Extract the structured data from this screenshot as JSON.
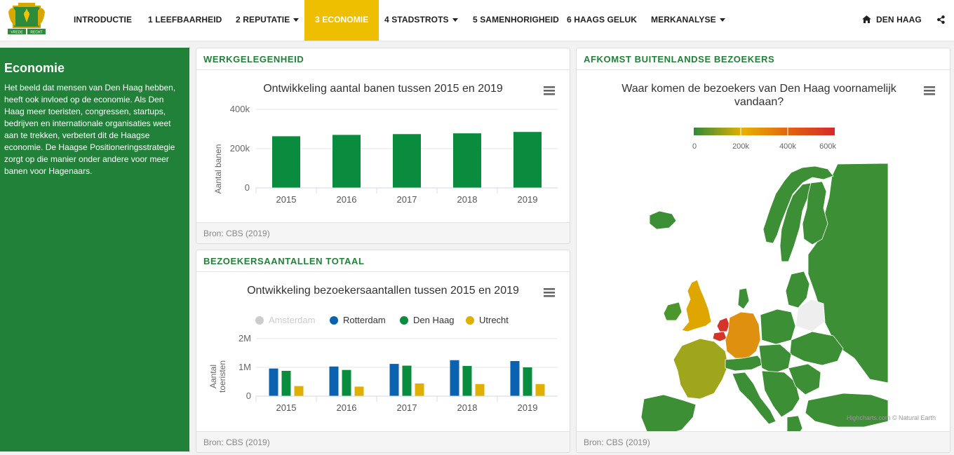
{
  "nav": {
    "items": [
      {
        "label": "INTRODUCTIE"
      },
      {
        "label": "1 LEEFBAARHEID"
      },
      {
        "label": "2 REPUTATIE"
      },
      {
        "label": "3 ECONOMIE"
      },
      {
        "label": "4 STADSTROTS"
      },
      {
        "label": "5 SAMENHORIGHEID"
      },
      {
        "label": "6 HAAGS GELUK"
      },
      {
        "label": "MERKANALYSE"
      }
    ],
    "active": "3 ECONOMIE",
    "city": "DEN HAAG",
    "logo_text": {
      "left": "VREDE",
      "right": "RECHT"
    },
    "colors": {
      "active": "#eebf00",
      "brand": "#218139"
    }
  },
  "sidebar": {
    "title": "Economie",
    "text": "Het beeld dat mensen van Den Haag hebben, heeft ook invloed op de economie. Als Den Haag meer toeristen, congressen, startups, bedrijven en internationale organisaties weet aan te trekken, verbetert dit de Haagse economie. De Haagse Positioneringsstrategie zorgt op die manier onder andere voor meer banen voor Hagenaars."
  },
  "panels": {
    "jobs": {
      "header": "WERKGELEGENHEID",
      "footer": "Bron: CBS (2019)"
    },
    "visitors": {
      "header": "BEZOEKERSAANTALLEN TOTAAL",
      "footer": "Bron: CBS (2019)"
    },
    "map": {
      "header": "AFKOMST BUITENLANDSE BEZOEKERS",
      "footer": "Bron: CBS (2019)"
    }
  },
  "chart_data": [
    {
      "type": "bar",
      "title": "Ontwikkeling aantal banen tussen 2015 en 2019",
      "ylabel": "Aantal banen",
      "xlabel": "",
      "categories": [
        "2015",
        "2016",
        "2017",
        "2018",
        "2019"
      ],
      "values": [
        263000,
        270000,
        274000,
        278000,
        285000
      ],
      "ylim": [
        0,
        400000
      ],
      "yticks": [
        {
          "value": 0,
          "label": "0"
        },
        {
          "value": 200000,
          "label": "200k"
        },
        {
          "value": 400000,
          "label": "400k"
        }
      ],
      "color": "#0a8c3e",
      "grid": true,
      "legend": "none"
    },
    {
      "type": "bar",
      "title": "Ontwikkeling bezoekersaantallen tussen 2015 en 2019",
      "ylabel": "Aantal toeristen",
      "xlabel": "",
      "categories": [
        "2015",
        "2016",
        "2017",
        "2018",
        "2019"
      ],
      "series": [
        {
          "name": "Amsterdam",
          "values": [
            null,
            null,
            null,
            null,
            null
          ],
          "color": "#cccccc",
          "hidden": true
        },
        {
          "name": "Rotterdam",
          "values": [
            960000,
            1030000,
            1120000,
            1250000,
            1220000
          ],
          "color": "#0a62b0"
        },
        {
          "name": "Den Haag",
          "values": [
            880000,
            910000,
            1060000,
            1050000,
            1000000
          ],
          "color": "#0a8c3e"
        },
        {
          "name": "Utrecht",
          "values": [
            350000,
            330000,
            440000,
            420000,
            420000
          ],
          "color": "#dfb000"
        }
      ],
      "ylim": [
        0,
        2000000
      ],
      "yticks": [
        {
          "value": 0,
          "label": "0"
        },
        {
          "value": 1000000,
          "label": "1M"
        },
        {
          "value": 2000000,
          "label": "2M"
        }
      ],
      "grid": true,
      "legend": "top"
    },
    {
      "type": "heatmap",
      "title": "Waar komen de bezoekers van Den Haag voornamelijk vandaan?",
      "colorAxis": {
        "min": 0,
        "max": 600000,
        "ticks": [
          "0",
          "200k",
          "400k",
          "600k"
        ],
        "stops": [
          "#2e8b3a",
          "#e8b000",
          "#e06010",
          "#d42a2a"
        ]
      },
      "credits": "Highcharts.com © Natural Earth"
    }
  ]
}
